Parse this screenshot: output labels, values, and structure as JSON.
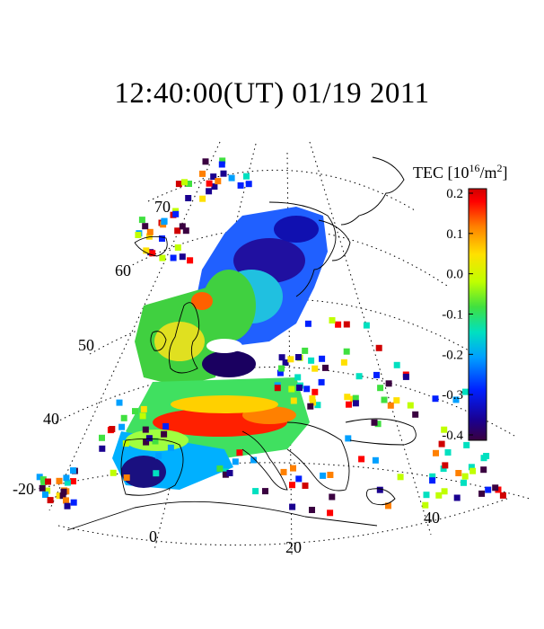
{
  "title": "12:40:00(UT)  01/19 2011",
  "chart_data": {
    "type": "heatmap",
    "title": "12:40:00(UT)  01/19 2011",
    "colorbar": {
      "label_main": "TEC [10",
      "label_exp": "16",
      "label_unit": "/m",
      "label_exp2": "2",
      "label_end": "]",
      "range": [
        -0.4,
        0.2
      ],
      "ticks": [
        "0.2",
        "0.1",
        "0.0",
        "-0.1",
        "-0.2",
        "-0.3",
        "-0.4"
      ],
      "colormap": [
        "#3a0040",
        "#1a0090",
        "#0020ff",
        "#00a0ff",
        "#00e0c0",
        "#40e040",
        "#c0ff00",
        "#ffe000",
        "#ff8000",
        "#ff0000",
        "#d00000"
      ]
    },
    "lat_labels": [
      "70",
      "60",
      "50",
      "40"
    ],
    "lon_labels": [
      "-20",
      "0",
      "20",
      "40"
    ],
    "grid": "dotted",
    "region": "Europe"
  }
}
